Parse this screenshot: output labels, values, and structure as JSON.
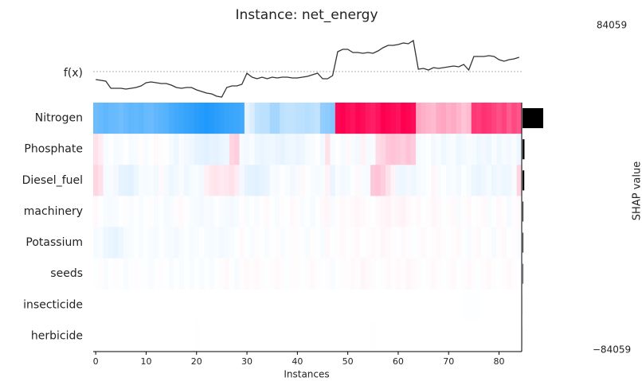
{
  "chart_data": {
    "type": "heatmap",
    "title": "Instance: net_energy",
    "xlabel": "Instances",
    "fx_label": "f(x)",
    "xlim": [
      -0.5,
      84.5
    ],
    "xticks": [
      0,
      10,
      20,
      30,
      40,
      50,
      60,
      70,
      80
    ],
    "fx": {
      "color": "#333333",
      "base_value": 0,
      "ylim": [
        -70000,
        90000
      ],
      "values": [
        -20000,
        -22000,
        -24000,
        -42000,
        -42000,
        -42000,
        -44000,
        -42000,
        -40000,
        -36000,
        -28000,
        -26000,
        -28000,
        -30000,
        -30000,
        -34000,
        -40000,
        -42000,
        -40000,
        -40000,
        -46000,
        -50000,
        -54000,
        -56000,
        -62000,
        -64000,
        -40000,
        -36000,
        -36000,
        -32000,
        -4000,
        -14000,
        -18000,
        -14000,
        -18000,
        -14000,
        -16000,
        -14000,
        -14000,
        -16000,
        -16000,
        -14000,
        -12000,
        -8000,
        -4000,
        -18000,
        -18000,
        -10000,
        50000,
        56000,
        56000,
        48000,
        48000,
        46000,
        48000,
        46000,
        52000,
        60000,
        66000,
        66000,
        68000,
        72000,
        70000,
        78000,
        6000,
        8000,
        4000,
        10000,
        8000,
        10000,
        12000,
        14000,
        12000,
        18000,
        4000,
        38000,
        38000,
        38000,
        40000,
        38000,
        30000,
        26000,
        30000,
        32000,
        36000
      ]
    },
    "clim": [
      -84059,
      84059
    ],
    "negative_color": "#008bfb",
    "positive_color": "#ff0051",
    "colorbar": {
      "label": "SHAP value",
      "ticks": [
        84059,
        {
          "value": -84059,
          "label": "−84059"
        }
      ]
    },
    "importance_color": "#000000",
    "series": [
      {
        "name": "Nitrogen",
        "importance": 53000,
        "values": [
          -48000,
          -50000,
          -52000,
          -50000,
          -49000,
          -47000,
          -50000,
          -52000,
          -51000,
          -53000,
          -50000,
          -49000,
          -52000,
          -54000,
          -56000,
          -60000,
          -62000,
          -64000,
          -66000,
          -68000,
          -70000,
          -72000,
          -74000,
          -72000,
          -70000,
          -68000,
          -66000,
          -65000,
          -64000,
          -62000,
          -8000,
          -12000,
          -20000,
          -22000,
          -22000,
          -30000,
          -30000,
          -22000,
          -20000,
          -20000,
          -22000,
          -22000,
          -24000,
          -22000,
          -20000,
          -36000,
          -38000,
          -40000,
          82000,
          84000,
          80000,
          78000,
          82000,
          80000,
          76000,
          74000,
          78000,
          84000,
          82000,
          80000,
          78000,
          84000,
          82000,
          80000,
          30000,
          26000,
          24000,
          22000,
          28000,
          30000,
          26000,
          28000,
          24000,
          20000,
          22000,
          66000,
          64000,
          68000,
          66000,
          62000,
          58000,
          62000,
          54000,
          60000,
          56000
        ]
      },
      {
        "name": "Phosphate",
        "importance": 5000,
        "values": [
          10000,
          6000,
          -2000,
          -1000,
          -3000,
          -2000,
          -1000,
          -3000,
          -2000,
          1000,
          -2000,
          -1000,
          2000,
          1000,
          -1000,
          -3000,
          -6000,
          -2000,
          -4000,
          -5000,
          -8000,
          -9000,
          -10000,
          -8000,
          -9000,
          -7000,
          -6000,
          14000,
          16000,
          -3000,
          -4000,
          -2000,
          -6000,
          -7000,
          -6000,
          -5000,
          -7000,
          -8000,
          -6000,
          -5000,
          -7000,
          -6000,
          -3000,
          -2000,
          -1000,
          -4000,
          10000,
          -2000,
          -1000,
          -3000,
          2000,
          -2000,
          -4000,
          4000,
          -3000,
          -2000,
          12000,
          14000,
          18000,
          20000,
          18000,
          16000,
          20000,
          17000,
          -3000,
          -2000,
          -1000,
          -4000,
          -2000,
          -5000,
          -3000,
          -2000,
          -6000,
          -4000,
          -2000,
          -3000,
          -5000,
          -4000,
          -6000,
          -2000,
          -5000,
          -3000,
          -4000,
          -2000,
          -6000
        ]
      },
      {
        "name": "Diesel_fuel",
        "importance": 4500,
        "values": [
          14000,
          10000,
          -3000,
          -2000,
          -4000,
          -8000,
          -9000,
          -10000,
          -6000,
          -2000,
          -3000,
          -2000,
          -4000,
          2000,
          -3000,
          -6000,
          -4000,
          -2000,
          -5000,
          -3000,
          -2000,
          -4000,
          5000,
          8000,
          9000,
          7000,
          8000,
          10000,
          6000,
          -4000,
          -8000,
          -9000,
          -10000,
          -8000,
          -7000,
          -2000,
          -3000,
          -1000,
          -2000,
          -4000,
          -3000,
          2000,
          -1000,
          -2000,
          -3000,
          -2000,
          4000,
          -7000,
          -2000,
          -4000,
          -3000,
          -1000,
          2000,
          -2000,
          -3000,
          18000,
          20000,
          16000,
          10000,
          4000,
          -5000,
          -6000,
          -4000,
          -5000,
          -3000,
          -2000,
          -1000,
          3000,
          -2000,
          -1000,
          -3000,
          -2000,
          -4000,
          -1000,
          -3000,
          -6000,
          -7000,
          -5000,
          -3000,
          -6000,
          -4000,
          -6000,
          -5000,
          -2000,
          14000
        ]
      },
      {
        "name": "machinery",
        "importance": 1800,
        "values": [
          2000,
          -1000,
          -2000,
          -3000,
          -2000,
          -1000,
          1000,
          -2000,
          -1000,
          -2000,
          -1000,
          1000,
          -2000,
          -1000,
          -3000,
          -2000,
          1000,
          2000,
          -1000,
          -2000,
          -3000,
          -4000,
          -2000,
          -3000,
          -1000,
          -2000,
          -3000,
          -4000,
          -3000,
          1000,
          -2000,
          -1000,
          -2000,
          1000,
          2000,
          -1000,
          -2000,
          1000,
          -1000,
          2000,
          1000,
          -2000,
          -1000,
          -3000,
          -1000,
          2000,
          3000,
          -2000,
          1000,
          2000,
          1000,
          2000,
          3000,
          2000,
          1000,
          -1000,
          2000,
          3000,
          4000,
          2000,
          3000,
          4000,
          2000,
          1000,
          2000,
          -1000,
          1000,
          3000,
          2000,
          -1000,
          1000,
          2000,
          -2000,
          1000,
          2000,
          -1000,
          1000,
          2000,
          -2000,
          -1000,
          2000,
          1000,
          -3000,
          1000,
          2000
        ]
      },
      {
        "name": "Potassium",
        "importance": 1700,
        "values": [
          -3000,
          -2000,
          -6000,
          -7000,
          -8000,
          -6000,
          -3000,
          -2000,
          -1000,
          -2000,
          -1000,
          -2000,
          -3000,
          -1000,
          -2000,
          -3000,
          -4000,
          -2000,
          -1000,
          -3000,
          -2000,
          -1000,
          -2000,
          -3000,
          -2000,
          -4000,
          -3000,
          -2000,
          -1000,
          2000,
          -1000,
          -2000,
          1000,
          -1000,
          -2000,
          -1000,
          1000,
          -2000,
          -1000,
          1000,
          1000,
          -1000,
          -2000,
          1000,
          -1000,
          -2000,
          2000,
          -1000,
          1000,
          2000,
          -1000,
          1000,
          2000,
          -1000,
          1000,
          2000,
          1000,
          3000,
          2000,
          1000,
          -1000,
          2000,
          1000,
          -1000,
          1000,
          2000,
          -1000,
          1000,
          2000,
          1000,
          -1000,
          1000,
          2000,
          -1000,
          -2000,
          1000,
          2000,
          -1000,
          1000,
          -3000,
          1000,
          2000,
          -1000,
          1000,
          -2000
        ]
      },
      {
        "name": "seeds",
        "importance": 1300,
        "values": [
          -1000,
          1000,
          -2000,
          -1000,
          1000,
          -1000,
          -2000,
          -1000,
          1000,
          -1000,
          -1000,
          -2000,
          -1000,
          1000,
          -1000,
          -2000,
          -1000,
          -2000,
          -1000,
          -2000,
          -1000,
          -2000,
          -1000,
          -2000,
          -1000,
          1000,
          2000,
          -1000,
          -2000,
          1000,
          2000,
          1000,
          2000,
          1000,
          -1000,
          1000,
          2000,
          1000,
          -1000,
          1000,
          1000,
          -1000,
          1000,
          2000,
          1000,
          -1000,
          1000,
          -2000,
          -1000,
          1000,
          1000,
          2000,
          1000,
          3000,
          2000,
          1000,
          -1000,
          1000,
          2000,
          1000,
          2000,
          1000,
          3000,
          2000,
          1000,
          -1000,
          1000,
          2000,
          1000,
          -1000,
          1000,
          2000,
          -1000,
          1000,
          2000,
          1000,
          -1000,
          1000,
          2000,
          1000,
          -1000,
          1000,
          2000,
          1000,
          -1000
        ]
      },
      {
        "name": "insecticide",
        "importance": 100,
        "values": [
          0,
          0,
          0,
          0,
          0,
          0,
          0,
          0,
          0,
          0,
          0,
          0,
          0,
          0,
          0,
          0,
          0,
          0,
          0,
          0,
          0,
          0,
          0,
          0,
          0,
          0,
          0,
          0,
          0,
          0,
          0,
          0,
          0,
          0,
          0,
          0,
          0,
          0,
          0,
          0,
          0,
          0,
          0,
          0,
          0,
          0,
          0,
          0,
          0,
          0,
          0,
          0,
          0,
          0,
          0,
          0,
          0,
          0,
          0,
          0,
          0,
          0,
          0,
          0,
          0,
          0,
          0,
          0,
          0,
          0,
          0,
          0,
          0,
          -1000,
          -1000,
          -1000,
          -1000,
          0,
          0,
          0,
          0,
          0,
          0,
          0,
          0
        ]
      },
      {
        "name": "herbicide",
        "importance": 100,
        "values": [
          0,
          0,
          0,
          0,
          0,
          0,
          0,
          0,
          0,
          0,
          0,
          0,
          0,
          0,
          0,
          0,
          0,
          0,
          0,
          0,
          -800,
          0,
          0,
          0,
          0,
          0,
          0,
          0,
          0,
          0,
          0,
          0,
          0,
          0,
          0,
          0,
          0,
          0,
          0,
          0,
          0,
          0,
          0,
          0,
          0,
          0,
          0,
          0,
          0,
          0,
          0,
          0,
          0,
          0,
          0,
          -800,
          0,
          0,
          0,
          0,
          0,
          0,
          0,
          0,
          0,
          0,
          0,
          0,
          0,
          0,
          0,
          0,
          0,
          0,
          0,
          0,
          0,
          0,
          0,
          0,
          0,
          0,
          0,
          0,
          0
        ]
      }
    ]
  }
}
